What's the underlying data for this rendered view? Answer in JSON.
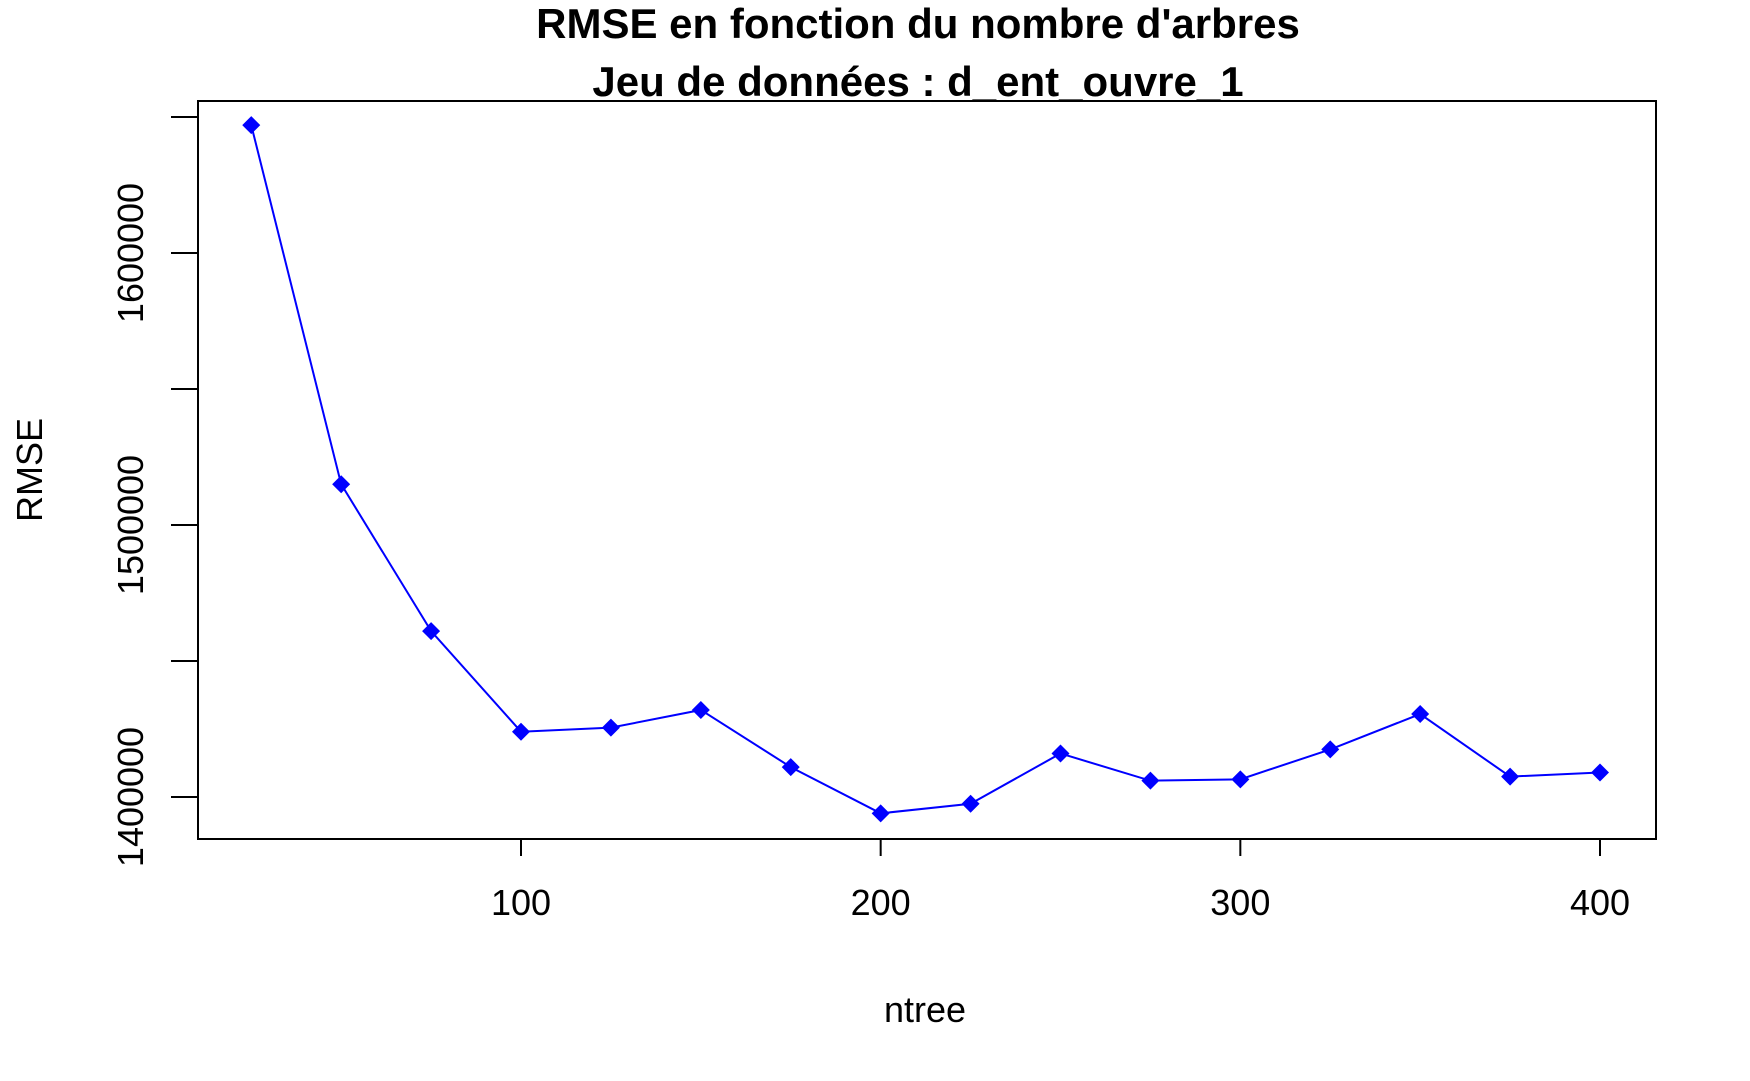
{
  "chart_data": {
    "type": "line",
    "title": "RMSE en fonction du nombre d'arbres",
    "subtitle": "Jeu de données : d_ent_ouvre_1",
    "xlabel": "ntree",
    "ylabel": "RMSE",
    "xlim": [
      10,
      415
    ],
    "ylim": [
      1385000,
      1650000
    ],
    "x_ticks": [
      100,
      200,
      300,
      400
    ],
    "x_tick_labels": [
      "100",
      "200",
      "300",
      "400"
    ],
    "y_ticks": [
      1400000,
      1450000,
      1500000,
      1550000,
      1600000,
      1650000
    ],
    "y_tick_labels": [
      "1400000",
      "",
      "1500000",
      "",
      "1600000",
      ""
    ],
    "grid": false,
    "legend": "none",
    "series": [
      {
        "color": "#0000ff",
        "marker": "diamond",
        "x": [
          25,
          50,
          75,
          100,
          125,
          150,
          175,
          200,
          225,
          250,
          275,
          300,
          325,
          350,
          375,
          400
        ],
        "y": [
          1647000,
          1515000,
          1461000,
          1424000,
          1425500,
          1432000,
          1411000,
          1394000,
          1397500,
          1416000,
          1406000,
          1406500,
          1417500,
          1430500,
          1407500,
          1409000
        ]
      }
    ]
  }
}
